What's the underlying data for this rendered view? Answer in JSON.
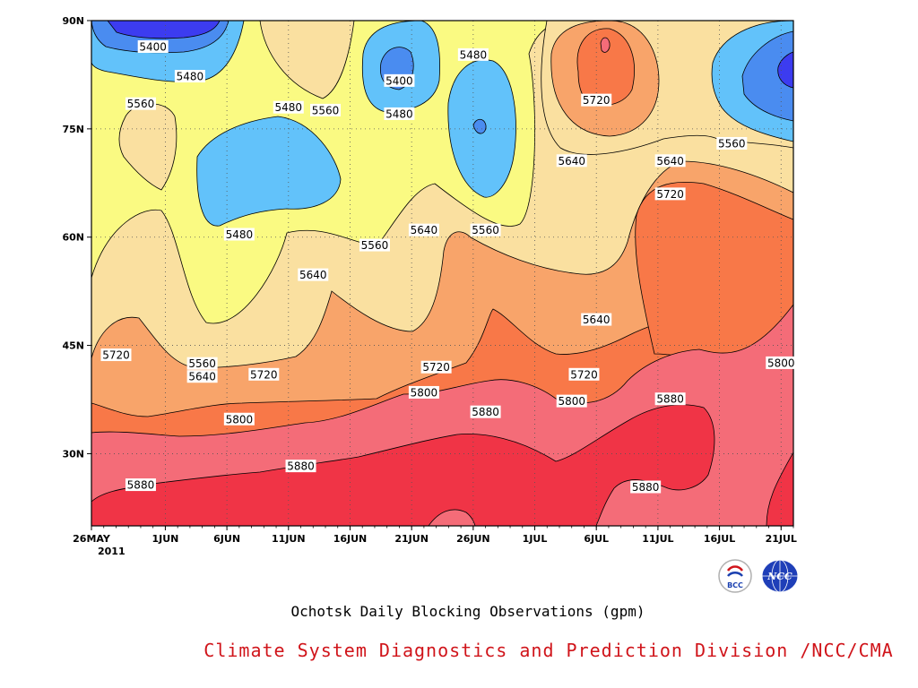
{
  "chart_data": {
    "type": "heatmap",
    "subtype": "filled-contour (time-latitude Hovmoller)",
    "title": "",
    "subtitle": "Ochotsk Daily Blocking Observations (gpm)",
    "credit": "Climate System Diagnostics and Prediction Division /NCC/CMA",
    "units": "gpm",
    "x_axis": {
      "ticks": [
        "26MAY",
        "1JUN",
        "6JUN",
        "11JUN",
        "16JUN",
        "21JUN",
        "26JUN",
        "1JUL",
        "6JUL",
        "11JUL",
        "16JUL",
        "21JUL"
      ],
      "year_label": "2011",
      "range": [
        "2011-05-26",
        "2011-07-22"
      ]
    },
    "y_axis": {
      "ticks": [
        "90N",
        "75N",
        "60N",
        "45N",
        "30N"
      ],
      "range": [
        20,
        90
      ]
    },
    "contour_levels": [
      5400,
      5480,
      5560,
      5640,
      5720,
      5800,
      5880
    ],
    "level_colors": {
      "below_5400": "#3c3cf0",
      "5400_5480": "#4a8cf0",
      "5480_5560": "#62c2fa",
      "5560_5640": "#fafa82",
      "5640_5720": "#fae0a0",
      "5720_5800": "#f8a46a",
      "5800_5880": "#f87848",
      "5880_5960": "#f46c78",
      "above_5960": "#f03446"
    },
    "contour_labels": [
      {
        "text": "5400",
        "date": "2011-05-31",
        "lat": 86.4
      },
      {
        "text": "5480",
        "date": "2011-06-03",
        "lat": 82.3
      },
      {
        "text": "5560",
        "date": "2011-05-30",
        "lat": 78.5
      },
      {
        "text": "5480",
        "date": "2011-06-11",
        "lat": 78.0
      },
      {
        "text": "5560",
        "date": "2011-06-14",
        "lat": 77.6
      },
      {
        "text": "5400",
        "date": "2011-06-20",
        "lat": 81.7
      },
      {
        "text": "5480",
        "date": "2011-06-20",
        "lat": 77.1
      },
      {
        "text": "5480",
        "date": "2011-06-26",
        "lat": 85.3
      },
      {
        "text": "5720",
        "date": "2011-07-06",
        "lat": 79.0
      },
      {
        "text": "5640",
        "date": "2011-07-04",
        "lat": 70.6
      },
      {
        "text": "5640",
        "date": "2011-07-12",
        "lat": 70.6
      },
      {
        "text": "5560",
        "date": "2011-07-17",
        "lat": 73.0
      },
      {
        "text": "5720",
        "date": "2011-07-12",
        "lat": 66.0
      },
      {
        "text": "5480",
        "date": "2011-06-07",
        "lat": 60.4
      },
      {
        "text": "5640",
        "date": "2011-06-22",
        "lat": 61.0
      },
      {
        "text": "5560",
        "date": "2011-06-27",
        "lat": 61.0
      },
      {
        "text": "5560",
        "date": "2011-06-18",
        "lat": 58.9
      },
      {
        "text": "5640",
        "date": "2011-06-13",
        "lat": 54.8
      },
      {
        "text": "5640",
        "date": "2011-07-06",
        "lat": 48.6
      },
      {
        "text": "5560",
        "date": "2011-06-04",
        "lat": 42.5
      },
      {
        "text": "5720",
        "date": "2011-05-28",
        "lat": 43.7
      },
      {
        "text": "5640",
        "date": "2011-06-04",
        "lat": 40.7
      },
      {
        "text": "5720",
        "date": "2011-06-09",
        "lat": 41.0
      },
      {
        "text": "5720",
        "date": "2011-06-23",
        "lat": 42.0
      },
      {
        "text": "5720",
        "date": "2011-07-05",
        "lat": 41.0
      },
      {
        "text": "5800",
        "date": "2011-06-22",
        "lat": 38.5
      },
      {
        "text": "5800",
        "date": "2011-07-04",
        "lat": 37.3
      },
      {
        "text": "5800",
        "date": "2011-07-21",
        "lat": 42.6
      },
      {
        "text": "5800",
        "date": "2011-06-07",
        "lat": 34.8
      },
      {
        "text": "5880",
        "date": "2011-06-27",
        "lat": 35.8
      },
      {
        "text": "5880",
        "date": "2011-07-12",
        "lat": 37.6
      },
      {
        "text": "5880",
        "date": "2011-06-12",
        "lat": 28.3
      },
      {
        "text": "5880",
        "date": "2011-05-30",
        "lat": 25.7
      },
      {
        "text": "5880",
        "date": "2011-07-10",
        "lat": 25.4
      }
    ]
  },
  "logos": {
    "bcc_icon": "bcc-logo",
    "ncc_icon": "ncc-globe-logo",
    "bcc_text": "BCC",
    "ncc_text": "NCC"
  }
}
